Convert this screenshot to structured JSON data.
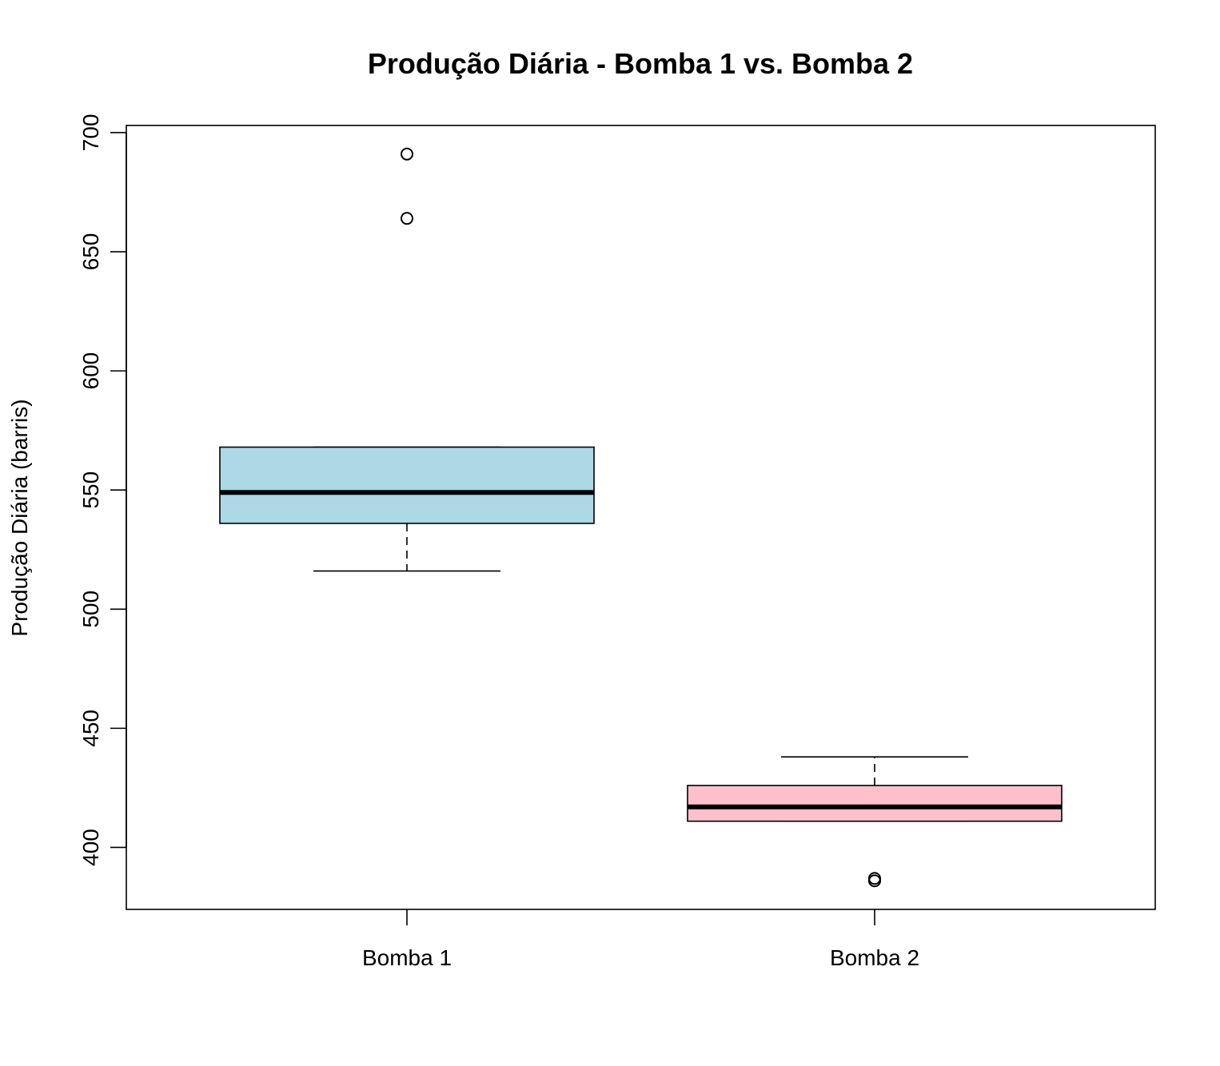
{
  "chart_data": {
    "type": "boxplot",
    "title": "Produção Diária - Bomba 1 vs. Bomba 2",
    "xlabel": "",
    "ylabel": "Produção Diária (barris)",
    "ylim": [
      374,
      703
    ],
    "yticks": [
      400,
      450,
      500,
      550,
      600,
      650,
      700
    ],
    "categories": [
      "Bomba 1",
      "Bomba 2"
    ],
    "boxes": [
      {
        "name": "Bomba 1",
        "color": "#add8e6",
        "whisker_low": 516,
        "q1": 536,
        "median": 549,
        "q3": 568,
        "whisker_high": 568,
        "outliers": [
          664,
          691
        ]
      },
      {
        "name": "Bomba 2",
        "color": "#ffc0cb",
        "whisker_low": 411,
        "q1": 411,
        "median": 417,
        "q3": 426,
        "whisker_high": 438,
        "outliers": [
          386,
          387
        ]
      }
    ],
    "grid": false,
    "legend": "none"
  }
}
